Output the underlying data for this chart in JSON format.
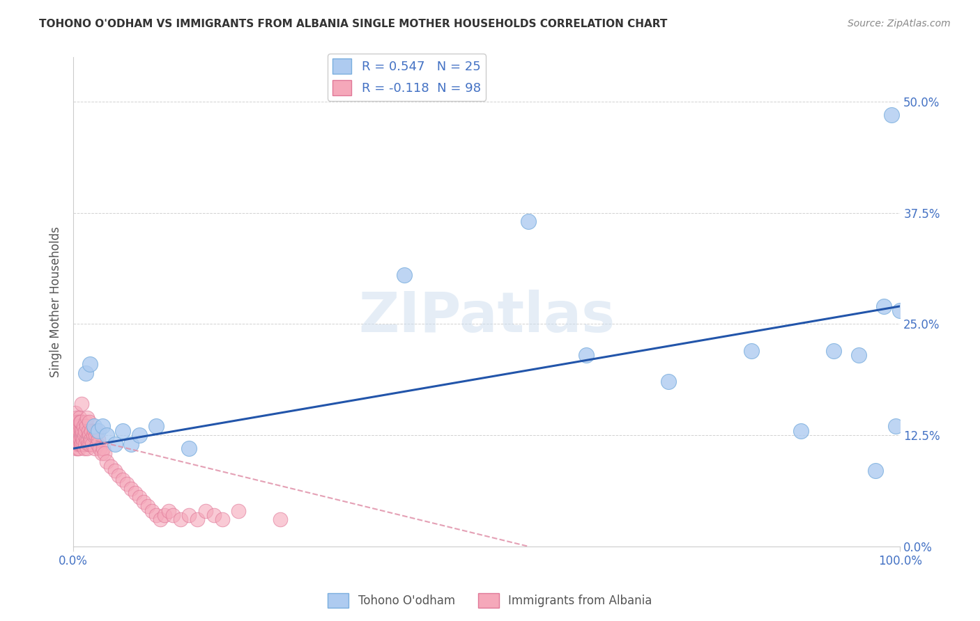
{
  "title": "TOHONO O'ODHAM VS IMMIGRANTS FROM ALBANIA SINGLE MOTHER HOUSEHOLDS CORRELATION CHART",
  "source": "Source: ZipAtlas.com",
  "ylabel": "Single Mother Households",
  "watermark": "ZIPatlas",
  "blue_label": "Tohono O'odham",
  "pink_label": "Immigrants from Albania",
  "blue_R": 0.547,
  "blue_N": 25,
  "pink_R": -0.118,
  "pink_N": 98,
  "blue_color": "#aecbf0",
  "blue_edge": "#7aaede",
  "pink_color": "#f5a8ba",
  "pink_edge": "#e07898",
  "trend_blue_color": "#2255aa",
  "trend_pink_color": "#e090a8",
  "xlim": [
    0,
    100
  ],
  "ylim": [
    0,
    55
  ],
  "yticks": [
    0,
    12.5,
    25.0,
    37.5,
    50.0
  ],
  "blue_x": [
    1.5,
    2.0,
    2.5,
    3.0,
    3.5,
    4.0,
    5.0,
    6.0,
    7.0,
    8.0,
    10.0,
    14.0,
    40.0,
    55.0,
    62.0,
    72.0,
    82.0,
    88.0,
    92.0,
    95.0,
    97.0,
    98.0,
    99.0,
    99.5,
    100.0
  ],
  "blue_y": [
    19.5,
    20.5,
    13.5,
    13.0,
    13.5,
    12.5,
    11.5,
    13.0,
    11.5,
    12.5,
    13.5,
    11.0,
    30.5,
    36.5,
    21.5,
    18.5,
    22.0,
    13.0,
    22.0,
    21.5,
    8.5,
    27.0,
    48.5,
    13.5,
    26.5
  ],
  "pink_x": [
    0.05,
    0.08,
    0.1,
    0.12,
    0.15,
    0.18,
    0.2,
    0.22,
    0.25,
    0.28,
    0.3,
    0.33,
    0.35,
    0.38,
    0.4,
    0.42,
    0.45,
    0.48,
    0.5,
    0.52,
    0.55,
    0.58,
    0.6,
    0.62,
    0.65,
    0.68,
    0.7,
    0.72,
    0.75,
    0.78,
    0.8,
    0.82,
    0.85,
    0.88,
    0.9,
    0.92,
    0.95,
    0.98,
    1.0,
    1.05,
    1.1,
    1.15,
    1.2,
    1.25,
    1.3,
    1.35,
    1.4,
    1.45,
    1.5,
    1.55,
    1.6,
    1.65,
    1.7,
    1.75,
    1.8,
    1.85,
    1.9,
    1.95,
    2.0,
    2.1,
    2.2,
    2.3,
    2.4,
    2.5,
    2.6,
    2.7,
    2.8,
    2.9,
    3.0,
    3.2,
    3.4,
    3.6,
    3.8,
    4.0,
    4.5,
    5.0,
    5.5,
    6.0,
    6.5,
    7.0,
    7.5,
    8.0,
    8.5,
    9.0,
    9.5,
    10.0,
    10.5,
    11.0,
    11.5,
    12.0,
    13.0,
    14.0,
    15.0,
    16.0,
    17.0,
    18.0,
    20.0,
    25.0
  ],
  "pink_y": [
    13.5,
    12.5,
    14.0,
    11.5,
    13.0,
    12.0,
    15.0,
    13.5,
    12.0,
    11.0,
    14.0,
    12.5,
    13.0,
    11.5,
    14.5,
    12.0,
    13.5,
    11.0,
    14.0,
    12.5,
    13.0,
    11.5,
    14.0,
    12.0,
    13.5,
    11.0,
    14.5,
    12.0,
    13.0,
    11.5,
    13.5,
    12.0,
    14.0,
    11.5,
    13.0,
    12.5,
    14.0,
    11.5,
    16.0,
    12.5,
    13.0,
    11.5,
    12.0,
    13.5,
    11.0,
    12.5,
    13.0,
    11.5,
    14.0,
    12.0,
    13.5,
    11.0,
    14.5,
    12.0,
    13.0,
    11.5,
    12.5,
    14.0,
    11.5,
    12.0,
    13.0,
    11.5,
    12.5,
    13.0,
    11.0,
    12.5,
    13.0,
    11.5,
    12.0,
    11.0,
    10.5,
    11.0,
    10.5,
    9.5,
    9.0,
    8.5,
    8.0,
    7.5,
    7.0,
    6.5,
    6.0,
    5.5,
    5.0,
    4.5,
    4.0,
    3.5,
    3.0,
    3.5,
    4.0,
    3.5,
    3.0,
    3.5,
    3.0,
    4.0,
    3.5,
    3.0,
    4.0,
    3.0
  ],
  "blue_trend_x0": 0,
  "blue_trend_y0": 11.0,
  "blue_trend_x1": 100,
  "blue_trend_y1": 27.0,
  "pink_trend_x0": 0,
  "pink_trend_y0": 12.5,
  "pink_trend_x1": 55,
  "pink_trend_y1": 0.0
}
